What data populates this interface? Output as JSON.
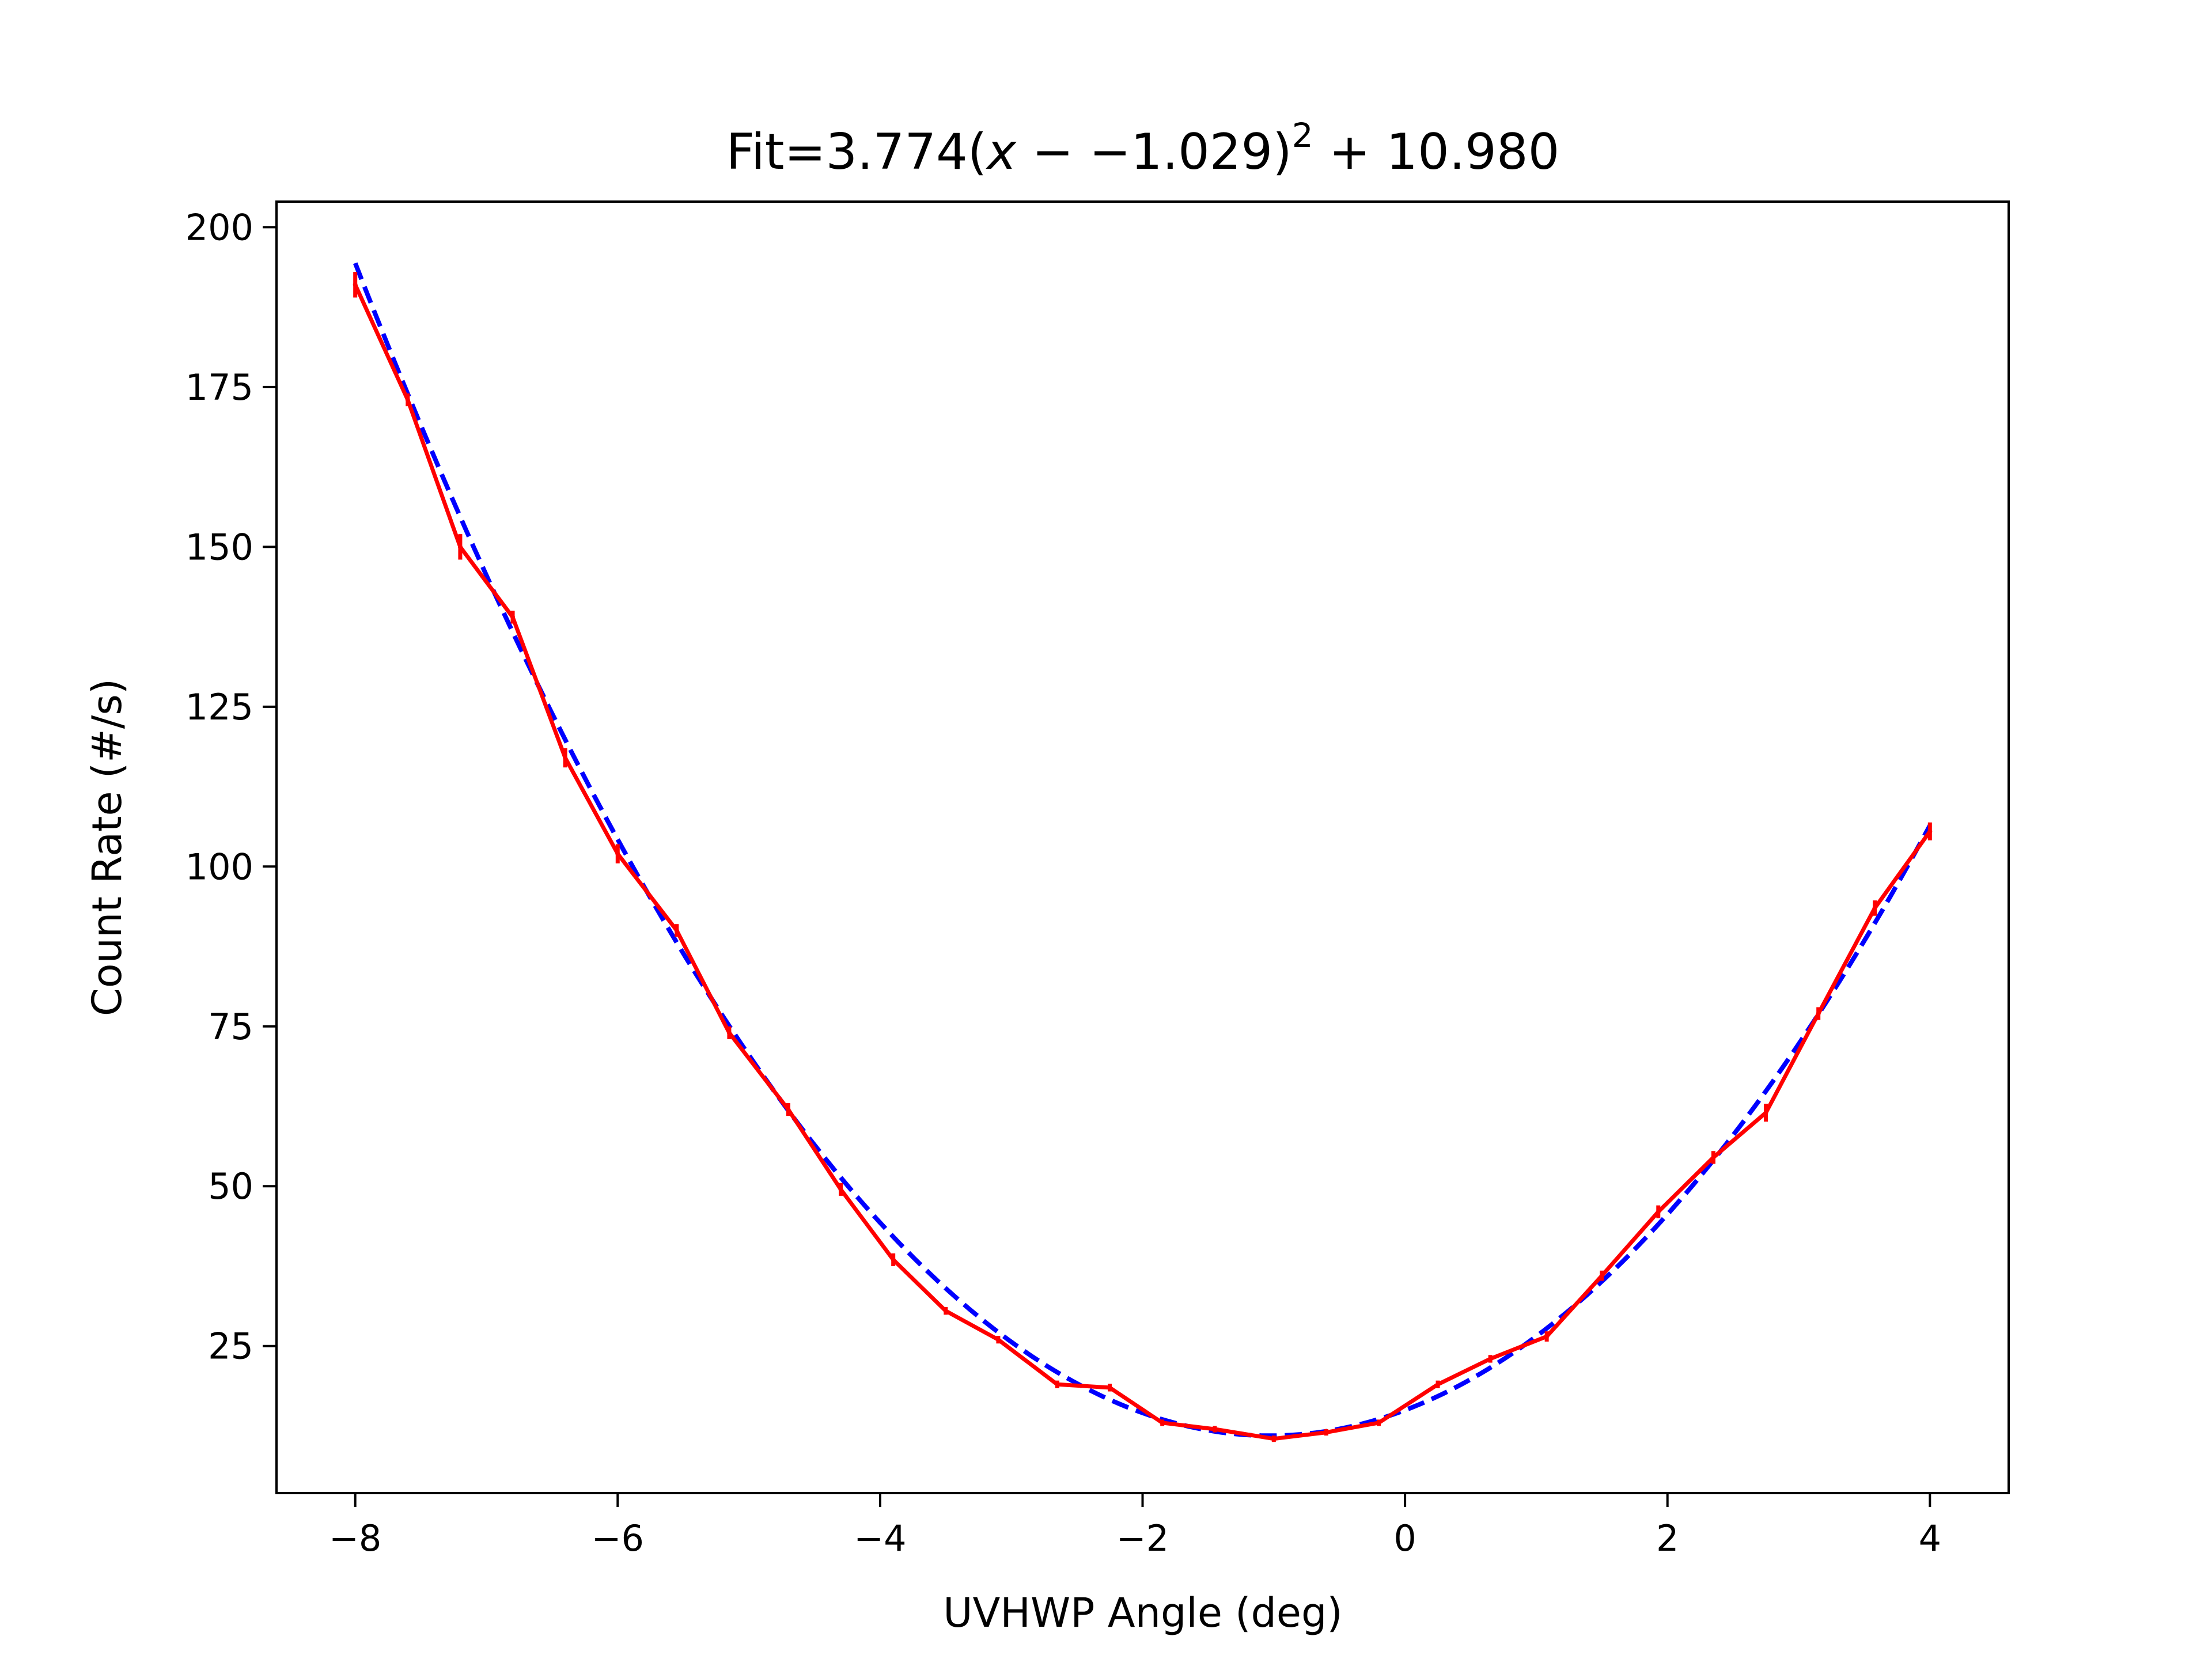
{
  "chart_data": {
    "type": "line",
    "title": {
      "prefix": "Fit=3.774(",
      "variable": "x",
      "middle": " − −1.029)",
      "exponent": "2",
      "suffix": " + 10.980"
    },
    "xlabel": "UVHWP Angle (deg)",
    "ylabel": "Count Rate (#/s)",
    "xlim": [
      -8.6,
      4.6
    ],
    "ylim": [
      2,
      204
    ],
    "xticks": [
      -8,
      -6,
      -4,
      -2,
      0,
      2,
      4
    ],
    "xtick_labels": [
      "−8",
      "−6",
      "−4",
      "−2",
      "0",
      "2",
      "4"
    ],
    "yticks": [
      25,
      50,
      75,
      100,
      125,
      150,
      175,
      200
    ],
    "ytick_labels": [
      "25",
      "50",
      "75",
      "100",
      "125",
      "150",
      "175",
      "200"
    ],
    "grid": false,
    "colors": {
      "fit": "#0000ff",
      "data": "#ff0000"
    },
    "fit": {
      "a": 3.774,
      "b": -1.029,
      "c": 10.98,
      "x_range": [
        -8,
        4
      ],
      "style": "dashed"
    },
    "series": [
      {
        "x": [
          -8.0,
          -7.6,
          -7.2,
          -6.8,
          -6.4,
          -6.0,
          -5.55,
          -5.15,
          -4.7,
          -4.3,
          -3.9,
          -3.5,
          -3.1,
          -2.65,
          -2.25,
          -1.85,
          -1.45,
          -1.0,
          -0.6,
          -0.2,
          0.25,
          0.65,
          1.08,
          1.5,
          1.93,
          2.35,
          2.75,
          3.15,
          3.58,
          4.0
        ],
        "y": [
          191,
          173,
          150,
          139,
          117,
          102,
          90,
          74,
          62,
          49.5,
          38.5,
          30.5,
          26,
          19,
          18.5,
          13,
          12,
          10.5,
          11.5,
          13,
          19,
          23,
          26.5,
          36,
          46,
          54.5,
          61.5,
          77,
          93.5,
          105.5
        ],
        "yerr": [
          2,
          1,
          2,
          1,
          1.5,
          1.5,
          1,
          1,
          1,
          1,
          1,
          0.6,
          0.6,
          0.6,
          0.6,
          0.5,
          0.5,
          0.5,
          0.5,
          0.5,
          0.6,
          0.6,
          0.8,
          0.8,
          1,
          1,
          1.4,
          1,
          1.2,
          1.4
        ]
      }
    ]
  }
}
